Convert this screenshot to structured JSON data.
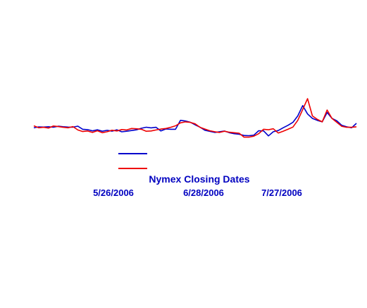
{
  "chart_data": {
    "type": "line",
    "xlabel": "Nymex Closing Dates",
    "ylabel": "",
    "tick_labels": [
      "5/26/2006",
      "6/28/2006",
      "7/27/2006"
    ],
    "grid": false,
    "legend_position": "bottom-left",
    "series": [
      {
        "color": "#0000cc",
        "values": [
          0.08,
          0.28,
          0.24,
          0.31,
          0.22,
          0.42,
          0.31,
          0.25,
          0.23,
          0.43,
          -0.2,
          -0.27,
          -0.53,
          -0.3,
          -0.6,
          -0.42,
          -0.58,
          -0.32,
          -0.72,
          -0.6,
          -0.46,
          -0.32,
          0.0,
          0.21,
          0.09,
          0.2,
          -0.55,
          -0.14,
          -0.2,
          -0.2,
          1.62,
          1.47,
          1.23,
          0.7,
          0.23,
          -0.4,
          -0.62,
          -0.85,
          -0.7,
          -0.56,
          -0.9,
          -1.1,
          -1.22,
          -1.45,
          -1.5,
          -1.4,
          -0.5,
          -0.53,
          -1.55,
          -0.7,
          -0.45,
          0.1,
          0.6,
          1.2,
          2.5,
          4.6,
          2.9,
          2.0,
          1.6,
          1.3,
          3.2,
          2.0,
          1.5,
          0.6,
          0.3,
          0.1,
          1.0
        ]
      },
      {
        "color": "#ee0000",
        "values": [
          0.5,
          0.1,
          0.2,
          0.05,
          0.45,
          0.35,
          0.2,
          0.1,
          0.35,
          -0.35,
          -0.65,
          -0.55,
          -0.85,
          -0.5,
          -0.9,
          -0.7,
          -0.4,
          -0.55,
          -0.25,
          -0.35,
          -0.05,
          -0.1,
          -0.2,
          -0.6,
          -0.55,
          -0.35,
          -0.15,
          -0.05,
          0.2,
          0.5,
          1.1,
          1.3,
          1.2,
          0.9,
          0.2,
          -0.15,
          -0.5,
          -0.7,
          -0.85,
          -0.6,
          -0.8,
          -0.9,
          -1.0,
          -1.8,
          -1.8,
          -1.6,
          -1.1,
          -0.2,
          -0.3,
          -0.1,
          -0.95,
          -0.6,
          -0.2,
          0.25,
          1.6,
          3.8,
          6.0,
          2.5,
          1.8,
          1.3,
          3.7,
          2.0,
          1.2,
          0.4,
          0.2,
          0.2,
          0.3
        ]
      }
    ]
  }
}
